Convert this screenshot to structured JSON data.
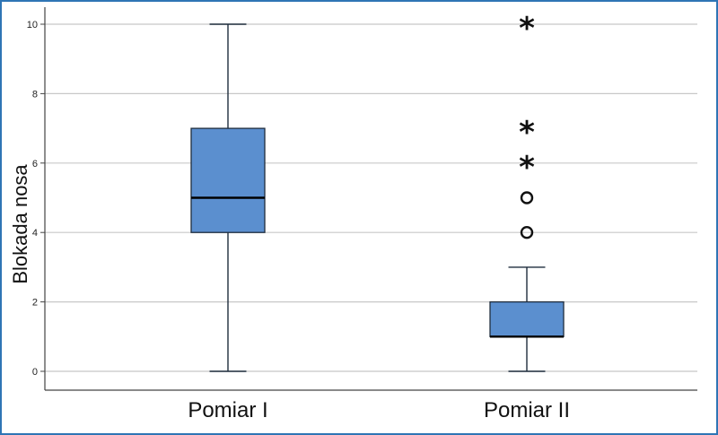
{
  "chart_data": {
    "type": "boxplot",
    "ylabel": "Blokada nosa",
    "xlabel": "",
    "ylim": [
      -0.5,
      10.5
    ],
    "yticks": [
      0,
      2,
      4,
      6,
      8,
      10
    ],
    "grid": true,
    "categories": [
      "Pomiar I",
      "Pomiar II"
    ],
    "boxes": [
      {
        "name": "Pomiar I",
        "min": 0,
        "q1": 4,
        "median": 5,
        "q3": 7,
        "max": 10,
        "outliers": [],
        "extremes": []
      },
      {
        "name": "Pomiar II",
        "min": 0,
        "q1": 1,
        "median": 1,
        "q3": 2,
        "max": 3,
        "outliers": [
          4,
          5
        ],
        "extremes": [
          6,
          7,
          10
        ]
      }
    ],
    "colors": {
      "box": "#5b8fcf",
      "box_stroke": "#1f2d3d",
      "grid": "#c8c8c8",
      "axis": "#444444"
    }
  }
}
